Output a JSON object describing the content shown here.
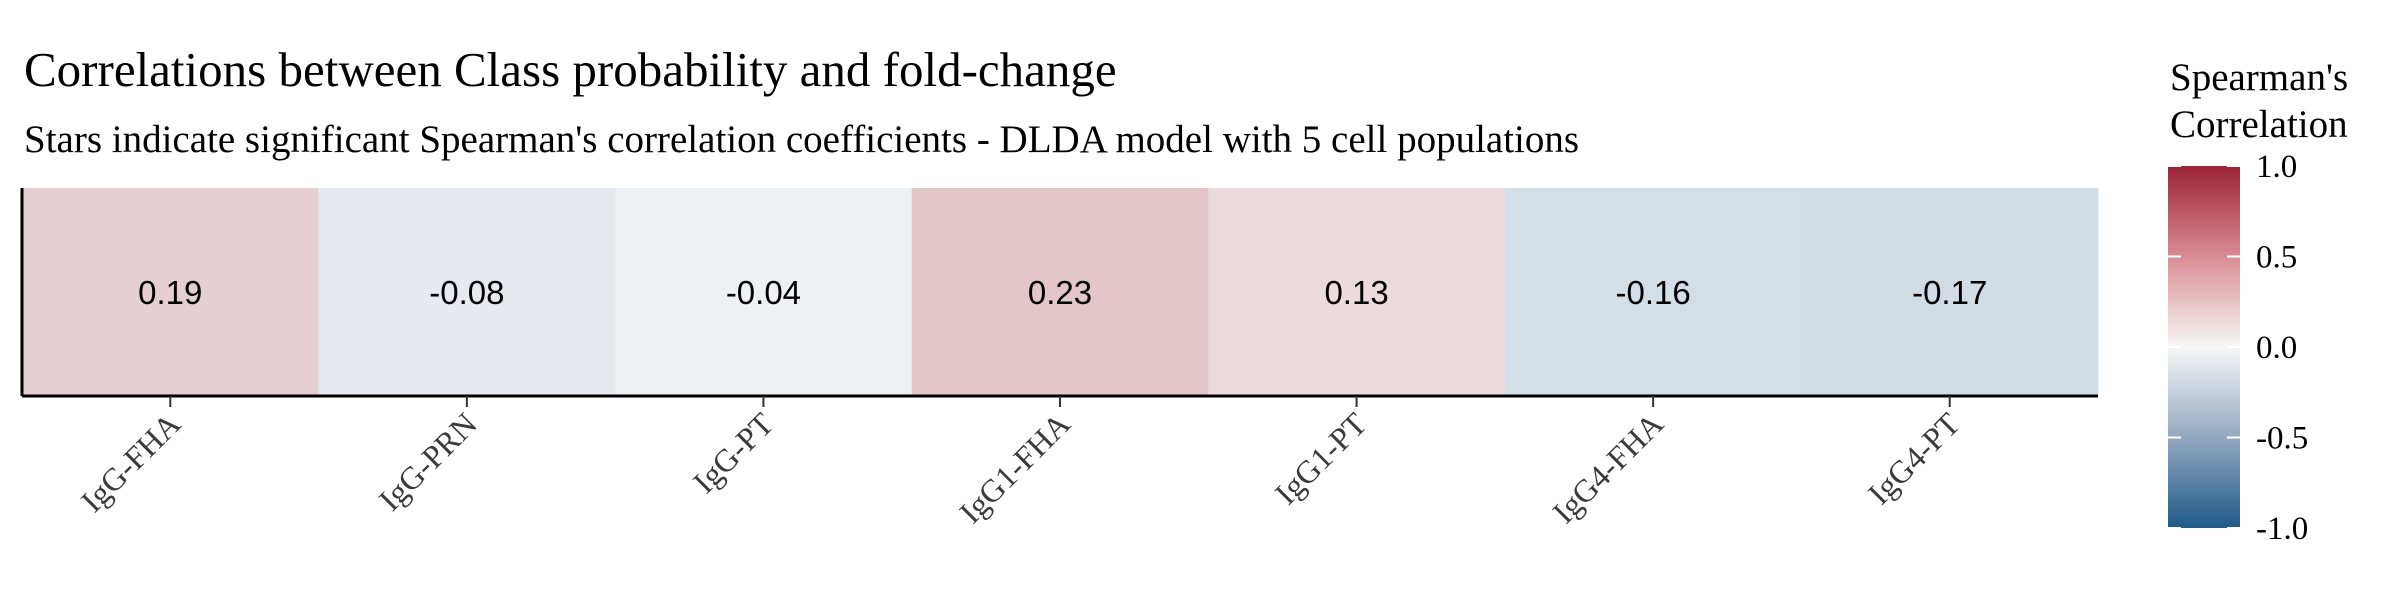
{
  "chart_data": {
    "type": "heatmap",
    "title": "Correlations between Class probability and fold-change",
    "subtitle": "Stars indicate significant Spearman's correlation coefficients - DLDA model with 5 cell populations",
    "categories": [
      "IgG-FHA",
      "IgG-PRN",
      "IgG-PT",
      "IgG1-FHA",
      "IgG1-PT",
      "IgG4-FHA",
      "IgG4-PT"
    ],
    "values": [
      0.19,
      -0.08,
      -0.04,
      0.23,
      0.13,
      -0.16,
      -0.17
    ],
    "value_labels": [
      "0.19",
      "-0.08",
      "-0.04",
      "0.23",
      "0.13",
      "-0.16",
      "-0.17"
    ],
    "legend": {
      "title_line1": "Spearman's",
      "title_line2": "Correlation",
      "ticks": [
        1.0,
        0.5,
        0.0,
        -0.5,
        -1.0
      ],
      "tick_labels": [
        "1.0",
        "0.5",
        "0.0",
        "-0.5",
        "-1.0"
      ],
      "placement": "right"
    },
    "color_scale": {
      "low": "#1f5a8a",
      "mid": "#f7f7f7",
      "high": "#9b2335",
      "domain": [
        -1,
        1
      ]
    },
    "grid": false
  }
}
